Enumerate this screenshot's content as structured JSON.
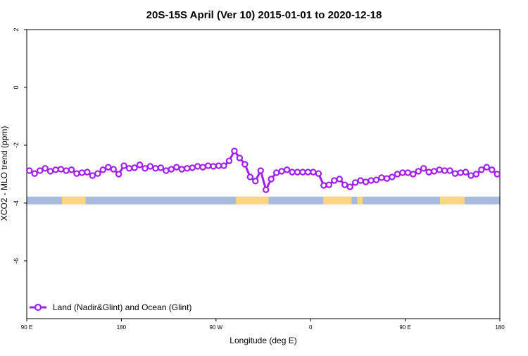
{
  "chart_data": {
    "type": "line",
    "title": "20S-15S April (Ver 10)   2015-01-01 to 2020-12-18",
    "xlabel": "Longitude (deg E)",
    "ylabel": "XCO2 - MLO trend (ppm)",
    "xlim": [
      90,
      540
    ],
    "xticks": [
      {
        "value": 90,
        "label": "90 E"
      },
      180,
      {
        "value": 270,
        "label": "90 W"
      },
      {
        "value": 360,
        "label": "0"
      },
      {
        "value": 450,
        "label": "90 E"
      },
      {
        "value": 540,
        "label": "180"
      }
    ],
    "ylim": [
      -8,
      2
    ],
    "yticks": [
      2,
      0,
      -2,
      -4,
      -6
    ],
    "legend": "bottom-left",
    "surface": {
      "level": -3.9,
      "ocean_color": "#a6bbdd",
      "land_color": "#fcd581",
      "land": [
        [
          123.5,
          146
        ],
        [
          289,
          320
        ],
        [
          372,
          399
        ],
        [
          404.5,
          409.5
        ],
        [
          483,
          506.5
        ]
      ]
    },
    "x": [
      92.5,
      97.5,
      102.5,
      107.5,
      112.5,
      117.5,
      122.5,
      127.5,
      132.5,
      137.5,
      142.5,
      147.5,
      152.5,
      157.5,
      162.5,
      167.5,
      172.5,
      177.5,
      182.5,
      187.5,
      192.5,
      197.5,
      202.5,
      207.5,
      212.5,
      217.5,
      222.5,
      227.5,
      232.5,
      237.5,
      242.5,
      247.5,
      252.5,
      257.5,
      262.5,
      267.5,
      272.5,
      277.5,
      282.5,
      287.5,
      292.5,
      297.5,
      302.5,
      307.5,
      312.5,
      317.5,
      322.5,
      327.5,
      332.5,
      337.5,
      342.5,
      347.5,
      352.5,
      357.5,
      362.5,
      367.5,
      372.5,
      377.5,
      382.5,
      387.5,
      392.5,
      397.5,
      402.5,
      407.5,
      412.5,
      417.5,
      422.5,
      427.5,
      432.5,
      437.5,
      442.5,
      447.5,
      452.5,
      457.5,
      462.5,
      467.5,
      472.5,
      477.5,
      482.5,
      487.5,
      492.5,
      497.5,
      502.5,
      507.5,
      512.5,
      517.5,
      522.5,
      527.5,
      532.5,
      537.5
    ],
    "series": [
      {
        "name": "Land (Nadir&Glint) and Ocean (Glint)",
        "color": "#a020f0",
        "values": [
          -2.88,
          -2.98,
          -2.88,
          -2.8,
          -2.9,
          -2.85,
          -2.83,
          -2.88,
          -2.85,
          -2.98,
          -2.95,
          -2.93,
          -3.05,
          -2.98,
          -2.85,
          -2.76,
          -2.83,
          -3.0,
          -2.71,
          -2.8,
          -2.78,
          -2.68,
          -2.8,
          -2.73,
          -2.8,
          -2.78,
          -2.88,
          -2.83,
          -2.76,
          -2.83,
          -2.8,
          -2.78,
          -2.73,
          -2.76,
          -2.71,
          -2.73,
          -2.71,
          -2.71,
          -2.54,
          -2.2,
          -2.44,
          -2.66,
          -3.1,
          -3.24,
          -2.88,
          -3.54,
          -3.17,
          -2.95,
          -2.9,
          -2.85,
          -2.93,
          -2.93,
          -2.93,
          -2.93,
          -2.93,
          -2.98,
          -3.39,
          -3.37,
          -3.22,
          -3.17,
          -3.37,
          -3.44,
          -3.29,
          -3.22,
          -3.27,
          -3.22,
          -3.2,
          -3.12,
          -3.15,
          -3.1,
          -3.0,
          -2.95,
          -2.95,
          -3.0,
          -2.9,
          -2.8,
          -2.93,
          -2.9,
          -2.85,
          -2.88,
          -2.88,
          -2.98,
          -2.95,
          -2.93,
          -3.05,
          -3.0,
          -2.85,
          -2.76,
          -2.85,
          -3.0
        ]
      }
    ]
  }
}
